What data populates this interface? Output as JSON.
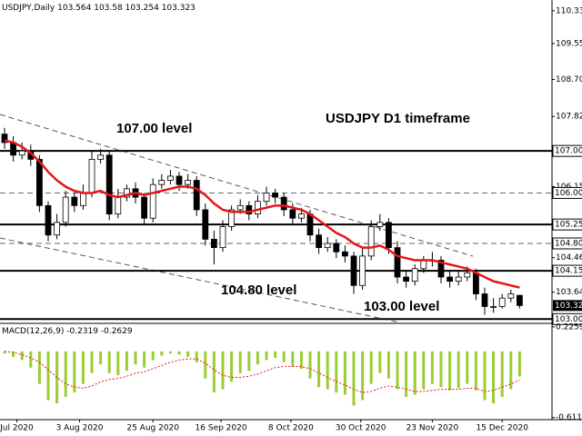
{
  "chart_data": {
    "type": "candlestick",
    "title": "USDJPY,Daily",
    "annotations": [
      "107.00 level",
      "104.80 level",
      "103.00 level",
      "USDJPY D1 timeframe"
    ],
    "open": [
      107.4,
      107.2,
      106.9,
      107.0,
      106.8,
      105.7,
      105.0,
      105.3,
      105.9,
      105.7,
      106.0,
      106.8,
      106.9,
      105.5,
      105.9,
      106.1,
      105.9,
      105.4,
      106.2,
      106.3,
      106.4,
      106.2,
      106.3,
      105.6,
      104.9,
      104.7,
      105.2,
      105.6,
      105.7,
      105.5,
      105.8,
      106.0,
      105.9,
      105.6,
      105.4,
      105.5,
      105.0,
      104.7,
      104.8,
      104.6,
      104.5,
      103.8,
      104.5,
      105.2,
      105.3,
      104.7,
      104.0,
      103.9,
      104.2,
      104.4,
      104.4,
      104.0,
      103.9,
      104.0,
      104.1,
      103.6,
      103.3,
      103.3,
      103.5,
      103.564
    ],
    "high": [
      107.55,
      107.35,
      107.2,
      107.15,
      106.9,
      105.8,
      105.5,
      106.05,
      106.0,
      106.2,
      107.0,
      107.05,
      107.0,
      106.1,
      106.2,
      106.25,
      106.0,
      106.35,
      106.45,
      106.55,
      106.5,
      106.45,
      106.4,
      105.75,
      105.1,
      105.35,
      105.7,
      105.85,
      105.8,
      105.95,
      106.15,
      106.1,
      106.0,
      105.75,
      105.65,
      105.6,
      105.15,
      104.95,
      104.9,
      104.75,
      104.6,
      104.7,
      105.35,
      105.5,
      105.4,
      104.85,
      104.15,
      104.3,
      104.5,
      104.6,
      104.5,
      104.15,
      104.15,
      104.25,
      104.2,
      103.75,
      103.5,
      103.6,
      103.7,
      103.58
    ],
    "low": [
      107.05,
      106.75,
      106.8,
      106.65,
      105.55,
      104.85,
      104.9,
      105.2,
      105.55,
      105.6,
      105.9,
      106.7,
      105.35,
      105.4,
      105.8,
      105.75,
      105.25,
      105.3,
      106.1,
      106.2,
      106.05,
      106.1,
      105.45,
      104.75,
      104.3,
      104.6,
      105.1,
      105.5,
      105.35,
      105.4,
      105.7,
      105.75,
      105.45,
      105.25,
      105.3,
      104.85,
      104.55,
      104.6,
      104.45,
      104.35,
      103.6,
      103.7,
      104.4,
      105.1,
      104.55,
      103.85,
      103.75,
      103.8,
      104.1,
      104.25,
      103.85,
      103.75,
      103.8,
      103.9,
      103.45,
      103.1,
      103.15,
      103.25,
      103.4,
      103.254
    ],
    "close": [
      107.2,
      106.9,
      107.0,
      106.8,
      105.7,
      105.0,
      105.3,
      105.9,
      105.7,
      106.0,
      106.8,
      106.9,
      105.5,
      105.9,
      106.1,
      105.9,
      105.4,
      106.2,
      106.3,
      106.4,
      106.2,
      106.3,
      105.6,
      104.9,
      104.7,
      105.2,
      105.6,
      105.7,
      105.5,
      105.8,
      106.0,
      105.9,
      105.6,
      105.4,
      105.5,
      105.0,
      104.7,
      104.8,
      104.6,
      104.5,
      103.8,
      104.5,
      105.2,
      105.3,
      104.7,
      104.0,
      103.9,
      104.2,
      104.4,
      104.4,
      104.0,
      103.9,
      104.0,
      104.1,
      103.6,
      103.3,
      103.3,
      103.5,
      103.6,
      103.323
    ],
    "up_color": "#ffffff",
    "down_color": "#000000",
    "ma": {
      "color": "#e8141a",
      "values": [
        107.25,
        107.2,
        107.1,
        106.95,
        106.75,
        106.5,
        106.3,
        106.15,
        106.05,
        106.0,
        106.0,
        106.05,
        105.95,
        105.9,
        105.95,
        106.0,
        105.95,
        106.0,
        106.05,
        106.1,
        106.15,
        106.15,
        106.1,
        105.95,
        105.75,
        105.6,
        105.55,
        105.55,
        105.55,
        105.6,
        105.65,
        105.7,
        105.7,
        105.65,
        105.6,
        105.5,
        105.35,
        105.2,
        105.05,
        104.95,
        104.8,
        104.7,
        104.7,
        104.75,
        104.65,
        104.5,
        104.45,
        104.4,
        104.4,
        104.4,
        104.35,
        104.3,
        104.25,
        104.2,
        104.1,
        104.0,
        103.9,
        103.85,
        103.8,
        103.75
      ]
    },
    "ylim": [
      102.92,
      110.59
    ],
    "yticks": [
      110.335,
      109.555,
      {
        "value": 108.7,
        "label": "108.700"
      },
      {
        "value": 107.82,
        "label": "107.820"
      },
      {
        "value": 106.15,
        "label": "106.150"
      },
      {
        "value": 104.46,
        "label": "104.460"
      },
      {
        "value": 103.64,
        "label": "103.640"
      }
    ],
    "levels": [
      {
        "value": 107,
        "label": "107.000",
        "style": "solid"
      },
      {
        "value": 106,
        "label": "106.000",
        "style": "dashed"
      },
      {
        "value": 105.25,
        "label": "105.250",
        "style": "solid"
      },
      {
        "value": 104.8,
        "label": "104.800",
        "style": "dashed"
      },
      {
        "value": 104.15,
        "label": "104.150",
        "style": "solid"
      },
      {
        "value": 103,
        "label": "103.000",
        "style": "solid"
      }
    ],
    "xticks": [
      {
        "value": 1.4,
        "label": "Jul 2020"
      },
      {
        "value": 8.6,
        "label": "3 Aug 2020"
      },
      {
        "value": 17,
        "label": "25 Aug 2020"
      },
      {
        "value": 24.8,
        "label": "16 Sep 2020"
      },
      {
        "value": 32.8,
        "label": "8 Oct 2020"
      },
      {
        "value": 40.8,
        "label": "30 Oct 2020"
      },
      {
        "value": 49,
        "label": "23 Nov 2020"
      },
      {
        "value": 57,
        "label": "15 Dec 2020"
      }
    ],
    "macd": {
      "label": "MACD(12,26,9)",
      "color": "#9acd32",
      "signal_color": "#e8141a",
      "values": [
        -0.02,
        -0.05,
        -0.08,
        -0.15,
        -0.3,
        -0.45,
        -0.48,
        -0.42,
        -0.38,
        -0.3,
        -0.2,
        -0.12,
        -0.2,
        -0.22,
        -0.18,
        -0.12,
        -0.15,
        -0.08,
        -0.04,
        -0.02,
        -0.03,
        -0.05,
        -0.1,
        -0.25,
        -0.38,
        -0.35,
        -0.28,
        -0.2,
        -0.18,
        -0.12,
        -0.08,
        -0.06,
        -0.1,
        -0.14,
        -0.16,
        -0.25,
        -0.33,
        -0.35,
        -0.38,
        -0.4,
        -0.5,
        -0.45,
        -0.3,
        -0.2,
        -0.25,
        -0.35,
        -0.42,
        -0.4,
        -0.35,
        -0.3,
        -0.33,
        -0.36,
        -0.34,
        -0.3,
        -0.36,
        -0.45,
        -0.48,
        -0.42,
        -0.35,
        -0.2319
      ],
      "signal": [
        0.0,
        -0.01,
        -0.03,
        -0.06,
        -0.1,
        -0.17,
        -0.24,
        -0.3,
        -0.33,
        -0.34,
        -0.32,
        -0.28,
        -0.26,
        -0.25,
        -0.23,
        -0.2,
        -0.19,
        -0.16,
        -0.13,
        -0.1,
        -0.08,
        -0.07,
        -0.07,
        -0.11,
        -0.17,
        -0.22,
        -0.24,
        -0.24,
        -0.23,
        -0.21,
        -0.18,
        -0.15,
        -0.14,
        -0.14,
        -0.14,
        -0.16,
        -0.2,
        -0.24,
        -0.28,
        -0.31,
        -0.35,
        -0.38,
        -0.37,
        -0.34,
        -0.32,
        -0.33,
        -0.35,
        -0.37,
        -0.37,
        -0.36,
        -0.35,
        -0.35,
        -0.35,
        -0.34,
        -0.34,
        -0.37,
        -0.36,
        -0.33,
        -0.3,
        -0.2629
      ],
      "ylim": [
        -0.63,
        0.25
      ],
      "yticks": [
        0.2259,
        -0.6111
      ]
    }
  }
}
